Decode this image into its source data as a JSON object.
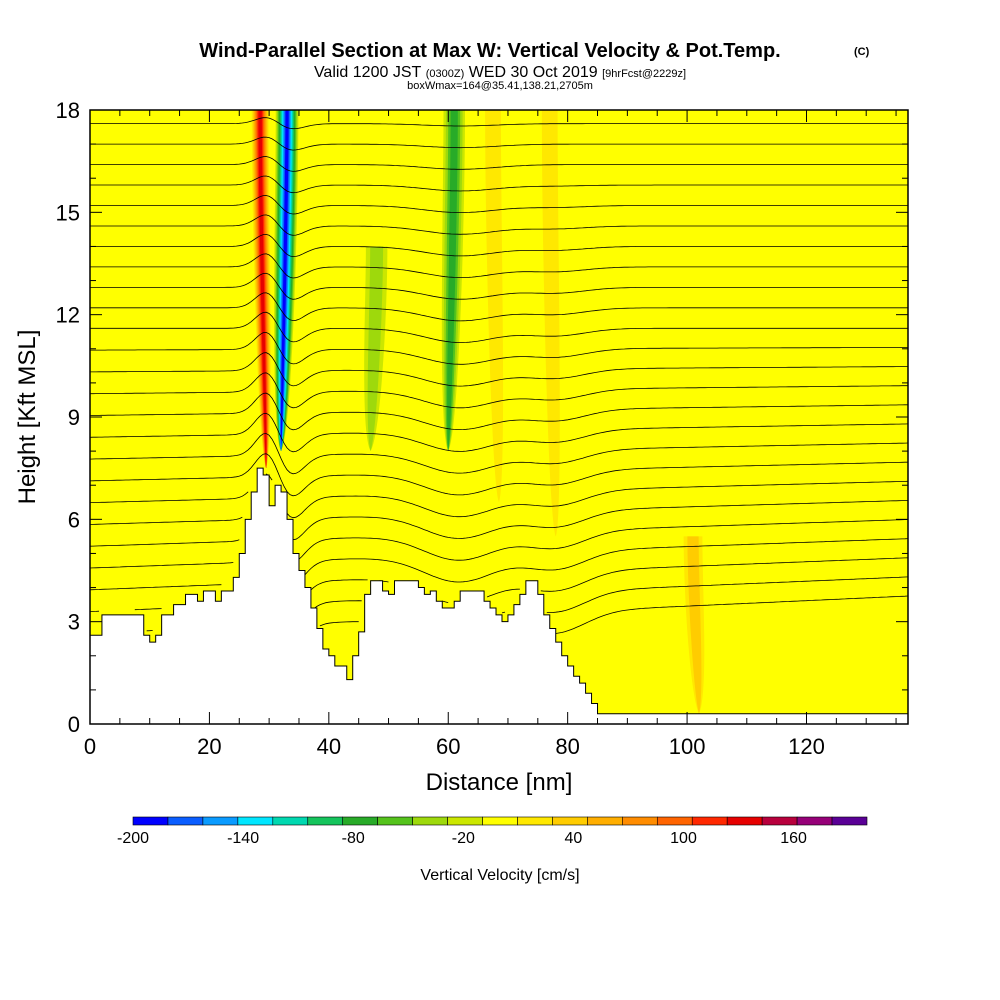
{
  "header": {
    "title": "Wind-Parallel Section at Max W: Vertical Velocity & Pot.Temp.",
    "copyright": "(C)",
    "valid_prefix": "Valid 1200 JST",
    "utc_time": "(0300Z)",
    "valid_date": "WED 30 Oct 2019",
    "forecast_info": "[9hrFcst@2229z]",
    "box_info": "boxWmax=164@35.41,138.21,2705m"
  },
  "chart_data": {
    "type": "heatmap",
    "title": "Wind-Parallel Section at Max W: Vertical Velocity & Pot.Temp.",
    "xlabel": "Distance [nm]",
    "ylabel": "Height [Kft MSL]",
    "xlim": [
      0,
      137
    ],
    "ylim": [
      0,
      18
    ],
    "x_ticks": [
      0,
      20,
      40,
      60,
      80,
      100,
      120
    ],
    "x_tick_labels": [
      "0",
      "20",
      "40",
      "60",
      "80",
      "100",
      "120"
    ],
    "y_ticks": [
      0,
      3,
      6,
      9,
      12,
      15,
      18
    ],
    "y_tick_labels": [
      "0",
      "3",
      "6",
      "9",
      "12",
      "15",
      "18"
    ],
    "terrain": [
      [
        0,
        2.6
      ],
      [
        2,
        3.2
      ],
      [
        8,
        3.2
      ],
      [
        9,
        2.6
      ],
      [
        10,
        2.4
      ],
      [
        11,
        2.6
      ],
      [
        12,
        3.2
      ],
      [
        14,
        3.5
      ],
      [
        16,
        3.8
      ],
      [
        18,
        3.6
      ],
      [
        19,
        3.9
      ],
      [
        21,
        3.6
      ],
      [
        22,
        3.9
      ],
      [
        24,
        4.3
      ],
      [
        25,
        5.0
      ],
      [
        26,
        6.0
      ],
      [
        27,
        6.8
      ],
      [
        28,
        7.5
      ],
      [
        29,
        7.3
      ],
      [
        30,
        6.4
      ],
      [
        31,
        7.0
      ],
      [
        32,
        6.8
      ],
      [
        33,
        6.0
      ],
      [
        34,
        5.0
      ],
      [
        35,
        4.5
      ],
      [
        36,
        4.0
      ],
      [
        37,
        3.4
      ],
      [
        38,
        2.8
      ],
      [
        39,
        2.2
      ],
      [
        40,
        2.0
      ],
      [
        41,
        1.7
      ],
      [
        42,
        1.7
      ],
      [
        43,
        1.3
      ],
      [
        44,
        2.0
      ],
      [
        45,
        2.7
      ],
      [
        46,
        3.8
      ],
      [
        47,
        4.2
      ],
      [
        48,
        4.2
      ],
      [
        49,
        3.9
      ],
      [
        50,
        3.8
      ],
      [
        51,
        4.2
      ],
      [
        52,
        4.2
      ],
      [
        54,
        4.2
      ],
      [
        55,
        4.0
      ],
      [
        56,
        3.8
      ],
      [
        57,
        3.9
      ],
      [
        58,
        3.6
      ],
      [
        59,
        3.4
      ],
      [
        60,
        3.4
      ],
      [
        61,
        3.6
      ],
      [
        62,
        3.9
      ],
      [
        65,
        3.9
      ],
      [
        66,
        3.6
      ],
      [
        67,
        3.4
      ],
      [
        68,
        3.2
      ],
      [
        69,
        3.0
      ],
      [
        70,
        3.2
      ],
      [
        71,
        3.5
      ],
      [
        72,
        3.8
      ],
      [
        73,
        4.2
      ],
      [
        74,
        4.2
      ],
      [
        75,
        3.8
      ],
      [
        76,
        3.2
      ],
      [
        77,
        2.8
      ],
      [
        78,
        2.4
      ],
      [
        79,
        2.0
      ],
      [
        80,
        1.7
      ],
      [
        81,
        1.4
      ],
      [
        82,
        1.2
      ],
      [
        83,
        0.9
      ],
      [
        84,
        0.6
      ],
      [
        85,
        0.3
      ],
      [
        86,
        0.3
      ],
      [
        137,
        0.3
      ]
    ],
    "updraft_bands": [
      {
        "x_center": 29.5,
        "from_ft": 7.5,
        "to_ft": 18,
        "peak_cm_s": 164
      },
      {
        "x_center": 68.5,
        "from_ft": 6.5,
        "to_ft": 18,
        "peak_cm_s": 40
      },
      {
        "x_center": 78.0,
        "from_ft": 5.5,
        "to_ft": 18,
        "peak_cm_s": 40
      },
      {
        "x_center": 102.0,
        "from_ft": 0.3,
        "to_ft": 5.5,
        "peak_cm_s": 60
      }
    ],
    "downdraft_bands": [
      {
        "x_center": 32.0,
        "from_ft": 8.0,
        "to_ft": 18,
        "peak_cm_s": -200
      },
      {
        "x_center": 60.0,
        "from_ft": 8.0,
        "to_ft": 18,
        "peak_cm_s": -80
      },
      {
        "x_center": 47.0,
        "from_ft": 8.0,
        "to_ft": 14,
        "peak_cm_s": -40
      }
    ],
    "theta_contour_interval_K": 2,
    "colorbar": {
      "label": "Vertical Velocity [cm/s]",
      "min": -200,
      "max": 200,
      "step": 20,
      "tick_values": [
        -200,
        -140,
        -80,
        -20,
        40,
        100,
        160
      ],
      "tick_labels": [
        "-200",
        "-140",
        "-80",
        "-20",
        "40",
        "100",
        "160"
      ],
      "colors": [
        "#0000ff",
        "#0a5dff",
        "#0a9bff",
        "#00e6ff",
        "#00d8b0",
        "#15c45c",
        "#28ab28",
        "#55c31c",
        "#9ed90c",
        "#cbe700",
        "#ffff00",
        "#ffe800",
        "#ffcc00",
        "#ffae00",
        "#ff8c00",
        "#ff6400",
        "#ff2800",
        "#e60000",
        "#b8003d",
        "#960078",
        "#5a0096"
      ]
    }
  }
}
